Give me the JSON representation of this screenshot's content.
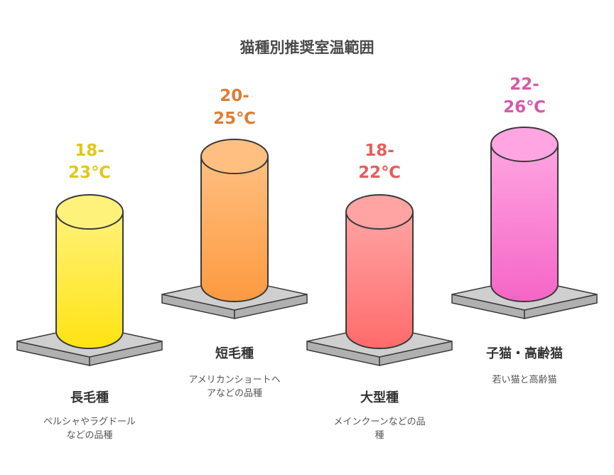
{
  "title": "猫種別推奨室温範囲",
  "colors": {
    "outline": "#3a3a3a",
    "platform_top": "#cfcfcf",
    "platform_side": "#b0b0b0"
  },
  "breeds": [
    {
      "temp_line1": "18-",
      "temp_line2": "23℃",
      "range_c": [
        18,
        23
      ],
      "name": "長毛種",
      "desc_line1": "ペルシャやラグドール",
      "desc_line2": "などの品種",
      "color_top": "#fff27a",
      "color_bottom": "#ffe312",
      "text_color": "#e0c71a"
    },
    {
      "temp_line1": "20-",
      "temp_line2": "25℃",
      "range_c": [
        20,
        25
      ],
      "name": "短毛種",
      "desc_line1": "アメリカンショートヘ",
      "desc_line2": "アなどの品種",
      "color_top": "#ffbf80",
      "color_bottom": "#fd9a40",
      "text_color": "#e07d32"
    },
    {
      "temp_line1": "18-",
      "temp_line2": "22℃",
      "range_c": [
        18,
        22
      ],
      "name": "大型種",
      "desc_line1": "メインクーンなどの品",
      "desc_line2": "種",
      "color_top": "#ffa3a3",
      "color_bottom": "#ff6b6b",
      "text_color": "#e85c5c"
    },
    {
      "temp_line1": "22-",
      "temp_line2": "26℃",
      "range_c": [
        22,
        26
      ],
      "name": "子猫・高齢猫",
      "desc_line1": "若い猫と高齢猫",
      "desc_line2": "",
      "color_top": "#ffa5e1",
      "color_bottom": "#f565c6",
      "text_color": "#d45aa8"
    }
  ]
}
